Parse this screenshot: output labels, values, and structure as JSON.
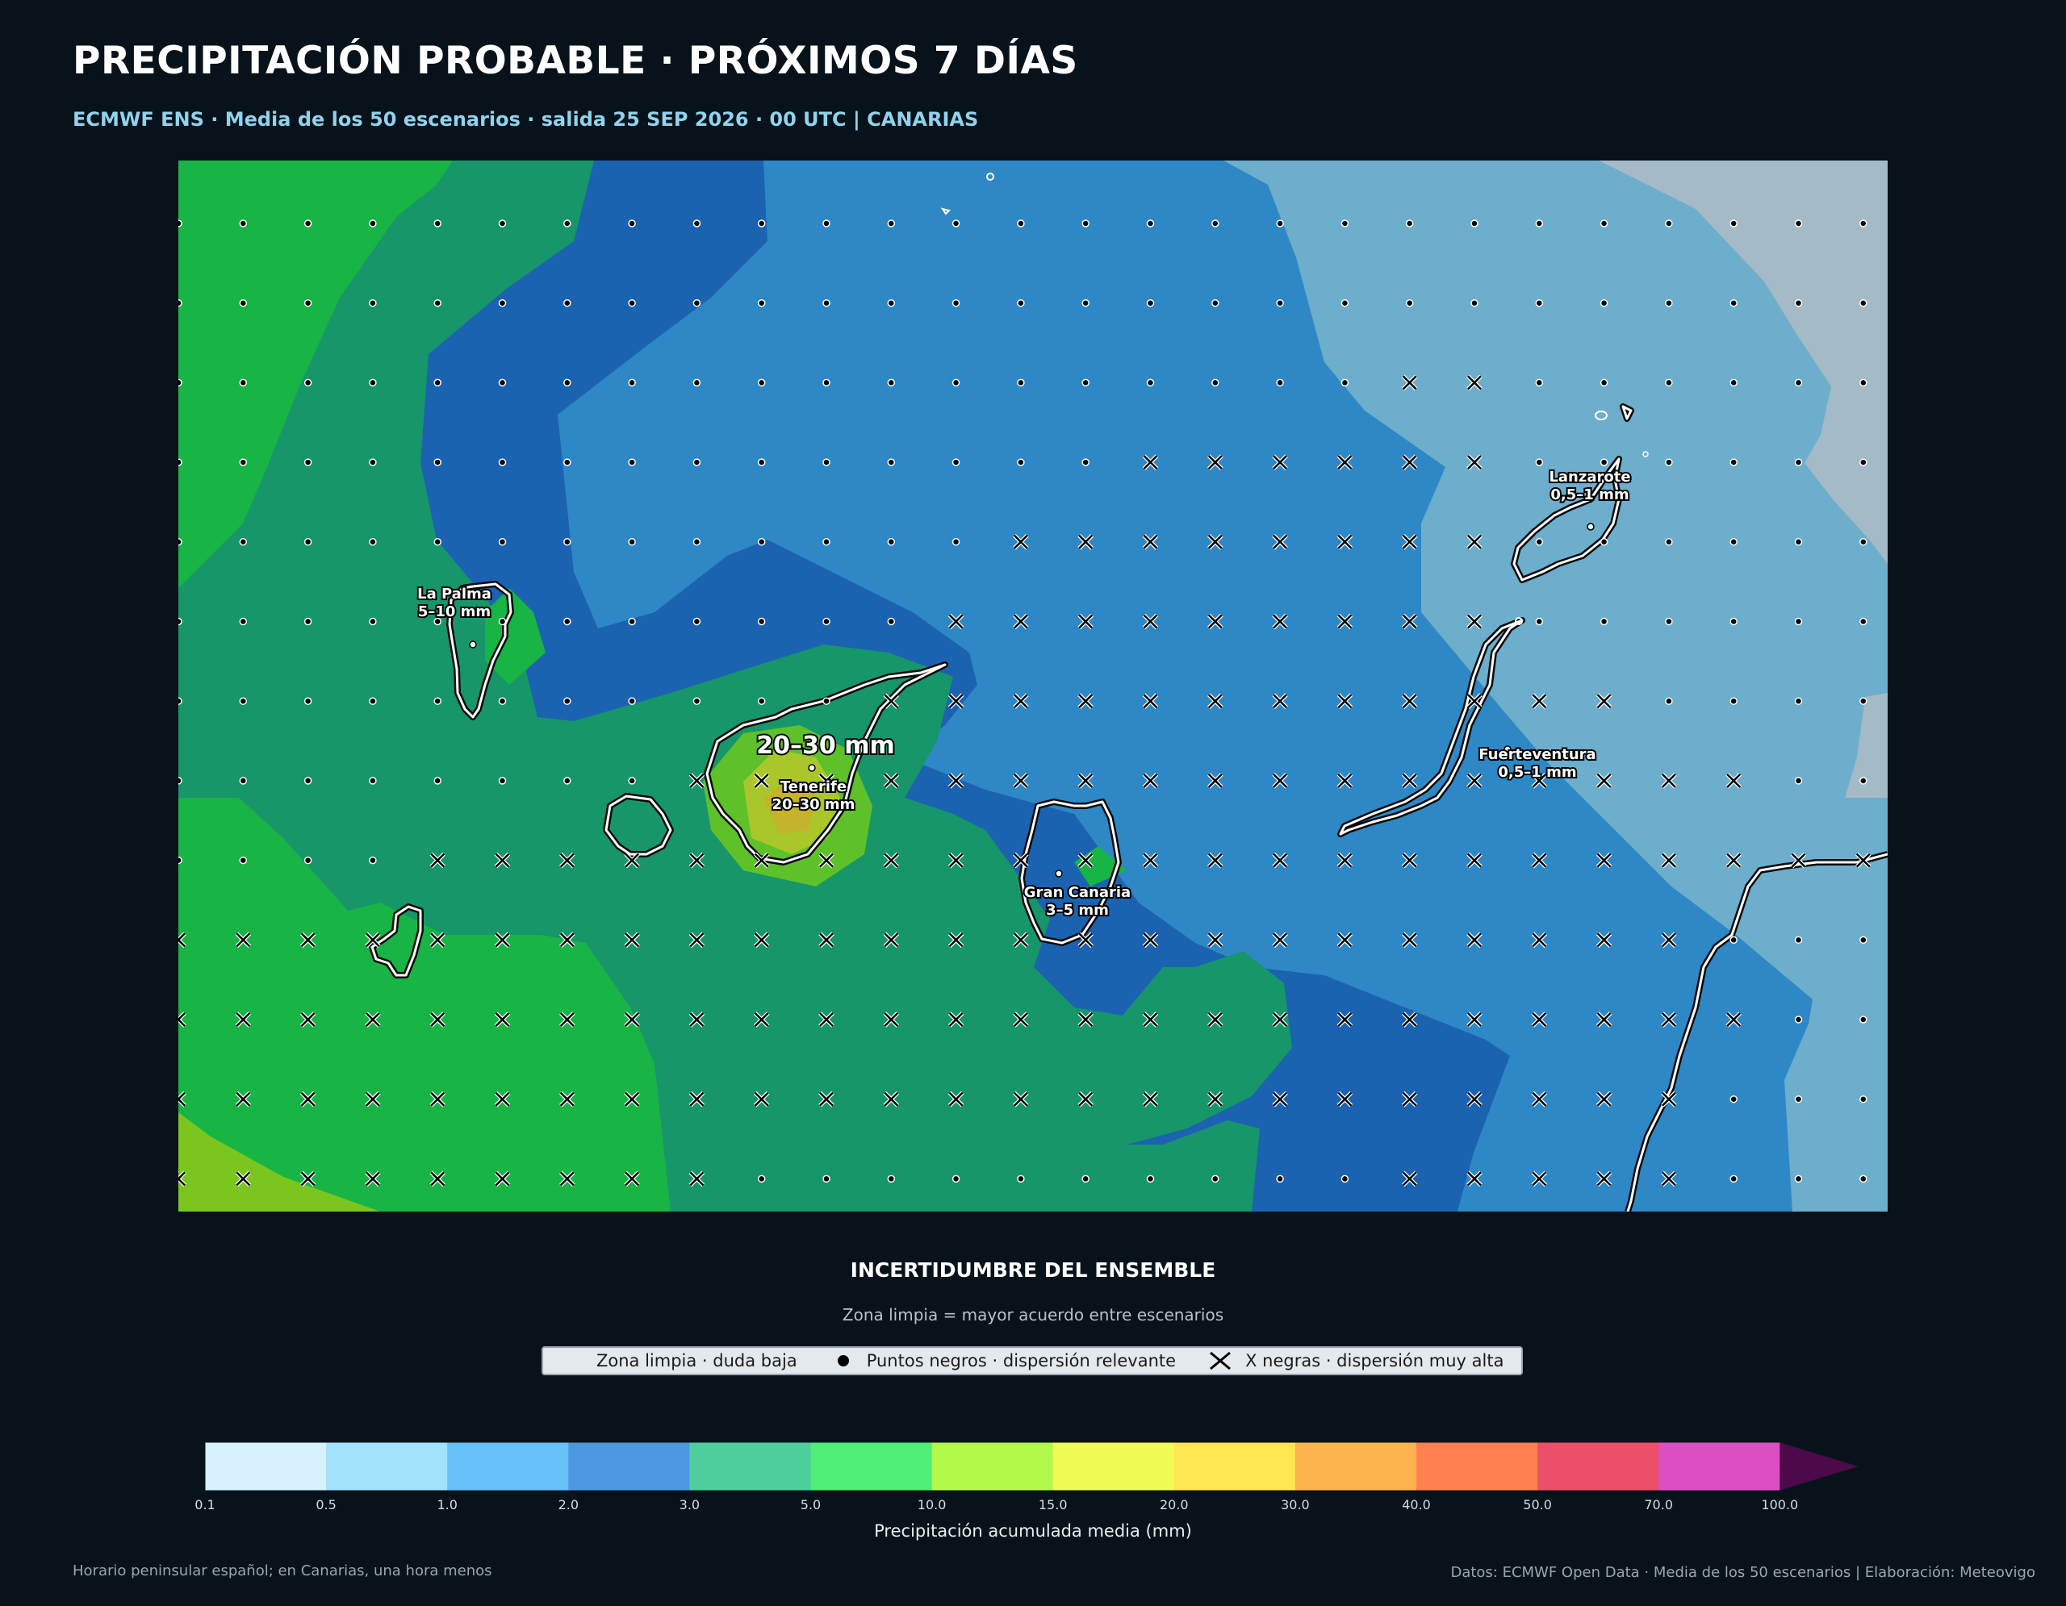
{
  "title": "PRECIPITACIÓN PROBABLE · PRÓXIMOS 7 DÍAS",
  "subtitle": "ECMWF ENS · Media de los 50 escenarios · salida 25 SEP 2026 · 00 UTC | CANARIAS",
  "colors": {
    "background": "#07121a",
    "title": "#ffffff",
    "subtitle": "#8fd3ee",
    "zones": {
      "light_blue_0_5_1": "#6caecc",
      "blue_1_2": "#2f88c6",
      "dark_blue_2_3": "#1b63b0",
      "teal_3_5": "#17966a",
      "green_5_10": "#18b445",
      "lime_10_15": "#7ac61f",
      "grey_0_1_0_5": "#a4bac6"
    }
  },
  "map": {
    "islands": [
      {
        "name": "La Palma",
        "label": "5–10 mm"
      },
      {
        "name": "Tenerife",
        "label": "20–30 mm"
      },
      {
        "name": "Gran Canaria",
        "label": "3–5 mm"
      },
      {
        "name": "Lanzarote",
        "label": "0,5–1 mm"
      },
      {
        "name": "Fuerteventura",
        "label": "0,5–1 mm"
      }
    ],
    "highlight": "20–30 mm",
    "uncertainty_markers": [
      "dot",
      "x"
    ]
  },
  "legend": {
    "title": "INCERTIDUMBRE DEL ENSEMBLE",
    "subtitle": "Zona limpia = mayor acuerdo entre escenarios",
    "items": [
      {
        "label": "Zona limpia · duda baja",
        "marker": "none"
      },
      {
        "label": "Puntos negros · dispersión relevante",
        "marker": "dot"
      },
      {
        "label": "X negras · dispersión muy alta",
        "marker": "x"
      }
    ]
  },
  "colorbar": {
    "label": "Precipitación acumulada media (mm)",
    "ticks": [
      "0.1",
      "0.5",
      "1.0",
      "2.0",
      "3.0",
      "5.0",
      "10.0",
      "15.0",
      "20.0",
      "30.0",
      "40.0",
      "50.0",
      "70.0",
      "100.0"
    ],
    "colors": [
      "#d8f2fc",
      "#a3e2fb",
      "#68c2fa",
      "#4e98e1",
      "#4fcf9e",
      "#4fee76",
      "#b2f94c",
      "#f1fb55",
      "#ffe652",
      "#ffb34f",
      "#ff8150",
      "#ec5068",
      "#dc4fc3"
    ],
    "extend_color": "#4c0a4a"
  },
  "footer": {
    "left": "Horario peninsular español; en Canarias, una hora menos",
    "right": "Datos: ECMWF Open Data · Media de los 50 escenarios | Elaboración: Meteovigo"
  }
}
